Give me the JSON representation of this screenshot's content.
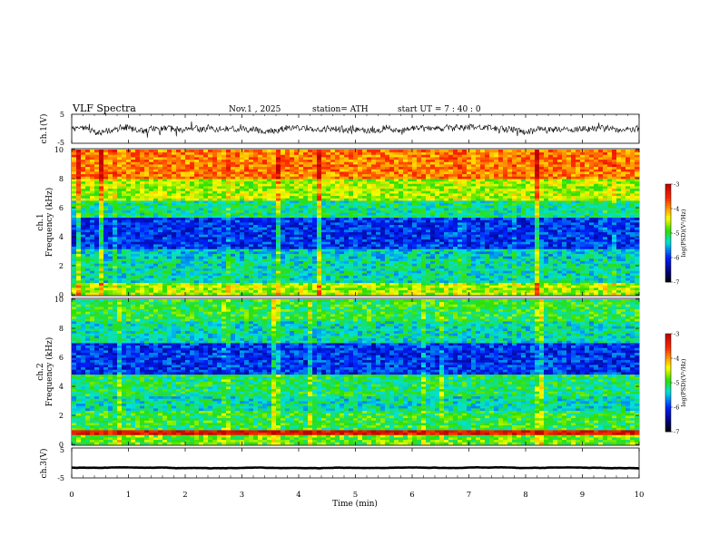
{
  "header": {
    "title": "VLF  Spectra",
    "date": "Nov.1  , 2025",
    "station": "station= ATH",
    "start": "start  UT  =   7 : 40 : 0"
  },
  "colors": {
    "dark_red": "#c00000",
    "red": "#ff2a00",
    "orange": "#ff9a00",
    "yellow": "#ffff00",
    "green": "#2ee000",
    "cyan": "#00e0e0",
    "blue": "#0020ff",
    "dark_blue": "#000070",
    "black": "#000000"
  },
  "chart_data": [
    {
      "type": "line",
      "name": "ch1-waveform",
      "title": "VLF  Spectra",
      "ylabel": "ch.1(V)",
      "ylim": [
        -5,
        5
      ],
      "yticks": [
        "5",
        "-5"
      ],
      "xlim": [
        0,
        10
      ],
      "description_values": {
        "mean": 0,
        "amplitude_approx": 1.5
      }
    },
    {
      "type": "heatmap",
      "name": "ch1-spectrogram",
      "channel_label": "ch.1",
      "ylabel": "Frequency  (kHz)",
      "ylim": [
        0,
        10
      ],
      "yticks": [
        "0",
        "2",
        "4",
        "6",
        "8",
        "10"
      ],
      "xlim": [
        0,
        10
      ],
      "colorbar": {
        "label": "log(PSD)(V²/Hz)",
        "range": [
          -7,
          -3
        ],
        "ticks": [
          "-3",
          "-4",
          "-5",
          "-6",
          "-7"
        ]
      },
      "bands": [
        {
          "f0": 0.0,
          "f1": 0.9,
          "level": -4.6
        },
        {
          "f0": 0.9,
          "f1": 2.5,
          "level": -5.3
        },
        {
          "f0": 2.5,
          "f1": 3.2,
          "level": -5.4
        },
        {
          "f0": 3.2,
          "f1": 5.4,
          "level": -6.0
        },
        {
          "f0": 5.4,
          "f1": 6.5,
          "level": -5.2
        },
        {
          "f0": 6.5,
          "f1": 8.0,
          "level": -4.6
        },
        {
          "f0": 8.0,
          "f1": 10.0,
          "level": -3.9
        }
      ]
    },
    {
      "type": "heatmap",
      "name": "ch2-spectrogram",
      "channel_label": "ch.2",
      "ylabel": "Frequency  (kHz)",
      "ylim": [
        0,
        10
      ],
      "yticks": [
        "0",
        "2",
        "4",
        "6",
        "8",
        "10"
      ],
      "xlim": [
        0,
        10
      ],
      "colorbar": {
        "label": "log(PSD)(V²/Hz)",
        "range": [
          -7,
          -3
        ],
        "ticks": [
          "-3",
          "-4",
          "-5",
          "-6",
          "-7"
        ]
      },
      "bands": [
        {
          "f0": 0.0,
          "f1": 0.6,
          "level": -4.8
        },
        {
          "f0": 0.6,
          "f1": 1.0,
          "level": -3.3
        },
        {
          "f0": 1.0,
          "f1": 2.4,
          "level": -5.0
        },
        {
          "f0": 2.4,
          "f1": 3.4,
          "level": -5.3
        },
        {
          "f0": 3.4,
          "f1": 4.8,
          "level": -5.1
        },
        {
          "f0": 4.8,
          "f1": 7.0,
          "level": -6.0
        },
        {
          "f0": 7.0,
          "f1": 8.5,
          "level": -5.3
        },
        {
          "f0": 8.5,
          "f1": 10.0,
          "level": -5.0
        }
      ]
    },
    {
      "type": "line",
      "name": "ch3-waveform",
      "ylabel": "ch.3(V)",
      "ylim": [
        -5,
        5
      ],
      "yticks": [
        "5",
        "-5"
      ],
      "xlim": [
        0,
        10
      ],
      "description_values": {
        "mean": -1.6,
        "amplitude_approx": 0.2
      }
    }
  ],
  "xaxis": {
    "label": "Time  (min)",
    "range": [
      0,
      10
    ],
    "ticks": [
      "0",
      "1",
      "2",
      "3",
      "4",
      "5",
      "6",
      "7",
      "8",
      "9",
      "10"
    ]
  }
}
